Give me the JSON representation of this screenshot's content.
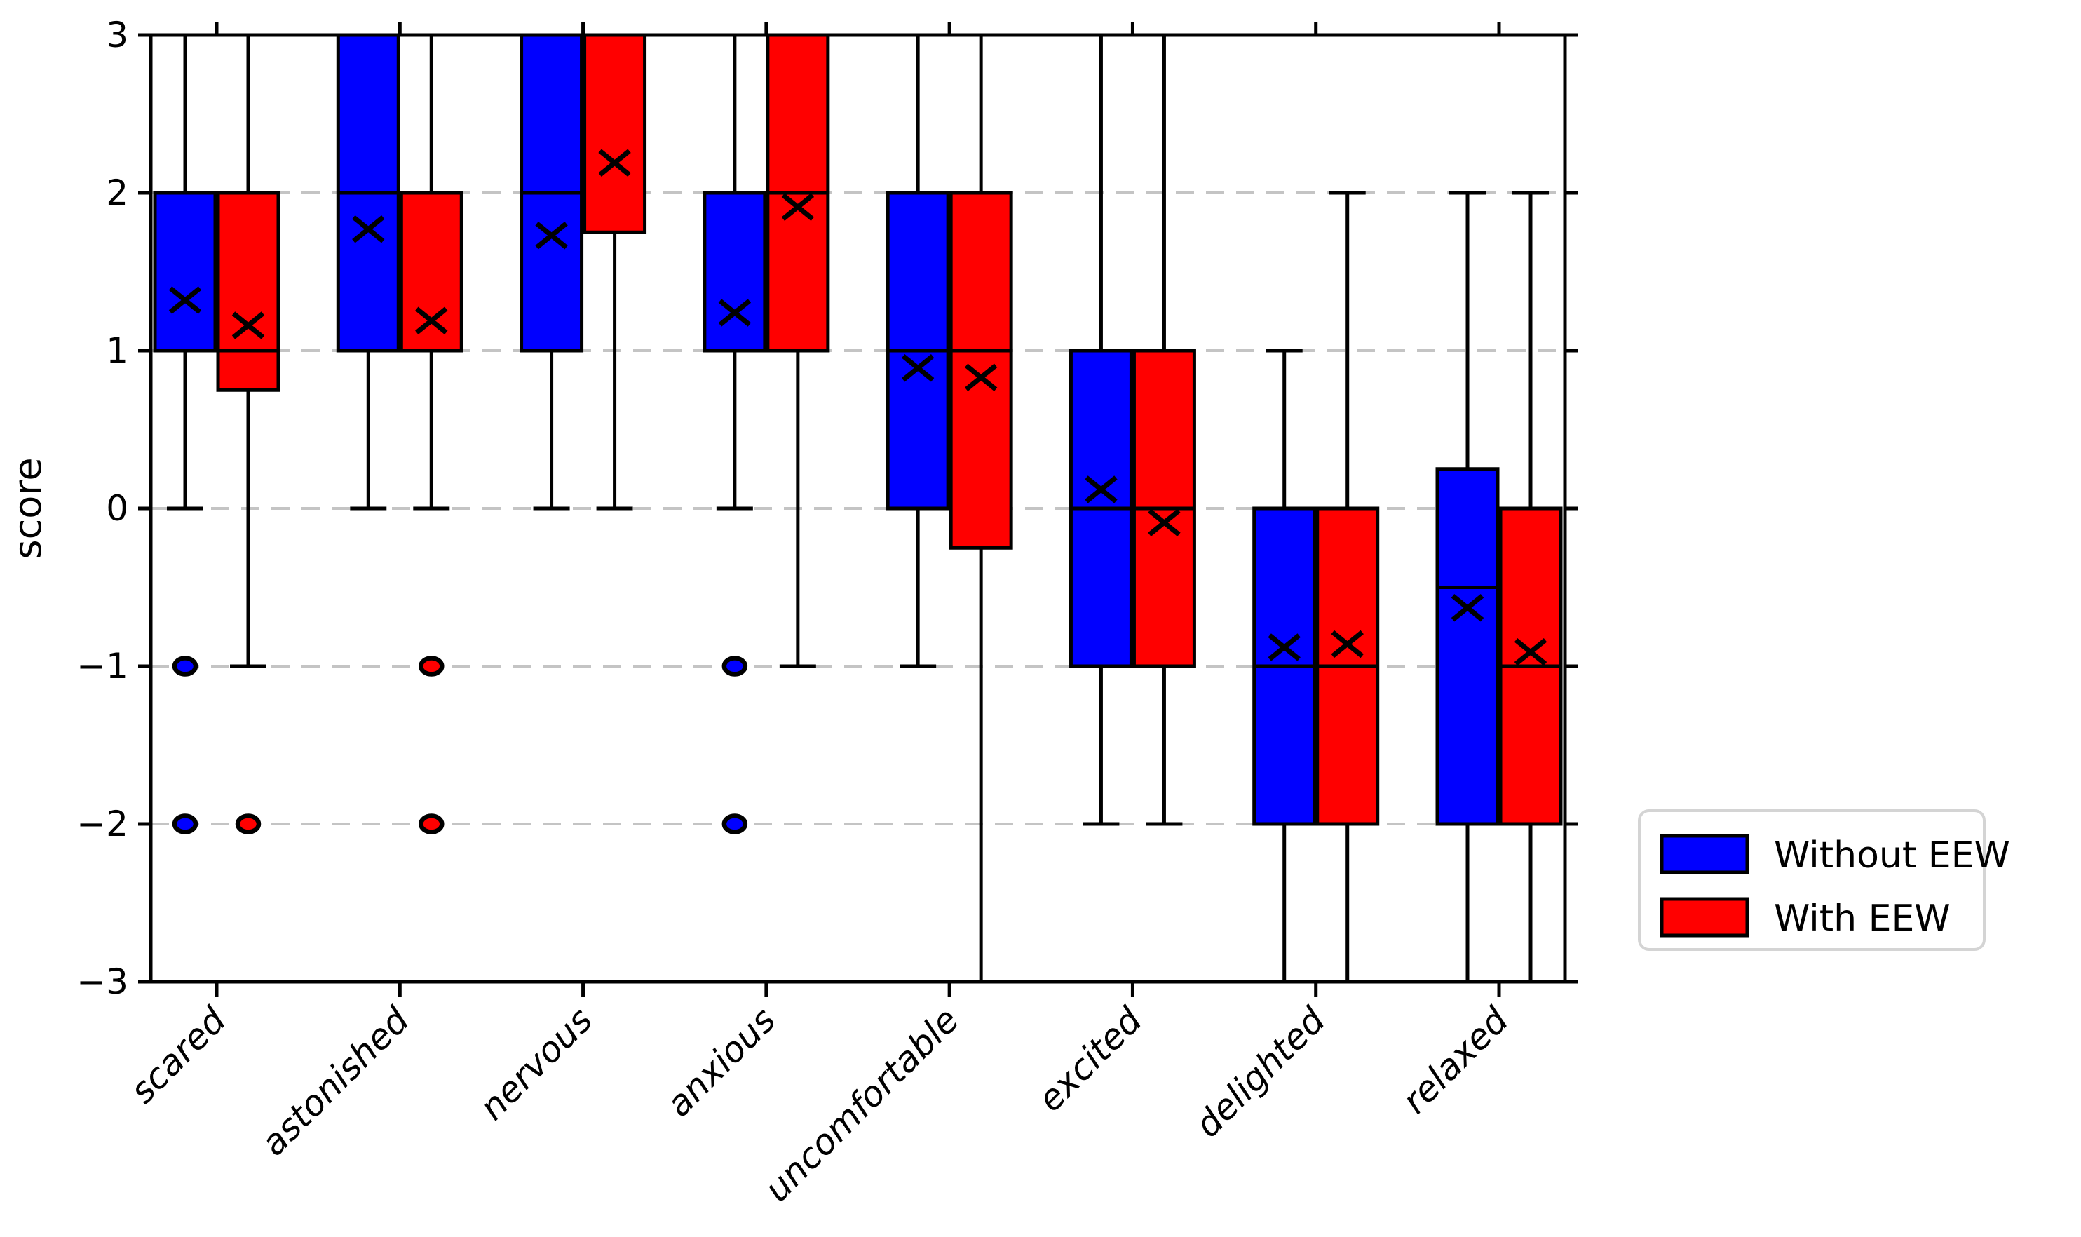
{
  "chart_data": {
    "type": "grouped_boxplot",
    "title": "",
    "xlabel": "",
    "ylabel": "score",
    "ylim": [
      -3,
      3
    ],
    "yticks": [
      3,
      2,
      1,
      0,
      -1,
      -2,
      -3
    ],
    "grid": {
      "show": true,
      "style": "dashed",
      "color": "#c4c4c4",
      "at": [
        2,
        1,
        0,
        -1,
        -2
      ]
    },
    "marker_semantics": {
      "x_marker": "mean",
      "dot_marker": "outlier"
    },
    "legend": {
      "position": "outside-lower-right",
      "entries": [
        {
          "label": "Without EEW",
          "color": "#0000ff"
        },
        {
          "label": "With EEW",
          "color": "#ff0000"
        }
      ]
    },
    "categories": [
      "scared",
      "astonished",
      "nervous",
      "anxious",
      "uncomfortable",
      "excited",
      "delighted",
      "relaxed"
    ],
    "series": [
      {
        "name": "Without EEW",
        "color": "#0000ff",
        "boxes": [
          {
            "category": "scared",
            "whislo": 0,
            "q1": 1,
            "med": 1,
            "q3": 2,
            "whishi": 3,
            "mean": 1.32,
            "fliers": [
              -1,
              -2
            ]
          },
          {
            "category": "astonished",
            "whislo": 0,
            "q1": 1,
            "med": 2,
            "q3": 3,
            "whishi": 3,
            "mean": 1.77,
            "fliers": []
          },
          {
            "category": "nervous",
            "whislo": 0,
            "q1": 1,
            "med": 2,
            "q3": 3,
            "whishi": 3,
            "mean": 1.73,
            "fliers": []
          },
          {
            "category": "anxious",
            "whislo": 0,
            "q1": 1,
            "med": 2,
            "q3": 2,
            "whishi": 3,
            "mean": 1.24,
            "fliers": [
              -1,
              -2
            ]
          },
          {
            "category": "uncomfortable",
            "whislo": -1,
            "q1": 0,
            "med": 1,
            "q3": 2,
            "whishi": 3,
            "mean": 0.89,
            "fliers": []
          },
          {
            "category": "excited",
            "whislo": -2,
            "q1": -1,
            "med": 0,
            "q3": 1,
            "whishi": 3,
            "mean": 0.12,
            "fliers": []
          },
          {
            "category": "delighted",
            "whislo": -3,
            "q1": -2,
            "med": -1,
            "q3": 0,
            "whishi": 1,
            "mean": -0.88,
            "fliers": []
          },
          {
            "category": "relaxed",
            "whislo": -3,
            "q1": -2,
            "med": -0.5,
            "q3": 0.25,
            "whishi": 2,
            "mean": -0.63,
            "fliers": []
          }
        ]
      },
      {
        "name": "With EEW",
        "color": "#ff0000",
        "boxes": [
          {
            "category": "scared",
            "whislo": -1,
            "q1": 0.75,
            "med": 1,
            "q3": 2,
            "whishi": 3,
            "mean": 1.16,
            "fliers": [
              -2
            ]
          },
          {
            "category": "astonished",
            "whislo": 0,
            "q1": 1,
            "med": 1,
            "q3": 2,
            "whishi": 3,
            "mean": 1.19,
            "fliers": [
              -1,
              -2
            ]
          },
          {
            "category": "nervous",
            "whislo": 0,
            "q1": 1.75,
            "med": 3,
            "q3": 3,
            "whishi": 3,
            "mean": 2.19,
            "fliers": []
          },
          {
            "category": "anxious",
            "whislo": -1,
            "q1": 1,
            "med": 2,
            "q3": 3,
            "whishi": 3,
            "mean": 1.91,
            "fliers": []
          },
          {
            "category": "uncomfortable",
            "whislo": -3,
            "q1": -0.25,
            "med": 1,
            "q3": 2,
            "whishi": 3,
            "mean": 0.83,
            "fliers": []
          },
          {
            "category": "excited",
            "whislo": -2,
            "q1": -1,
            "med": 0,
            "q3": 1,
            "whishi": 3,
            "mean": -0.09,
            "fliers": []
          },
          {
            "category": "delighted",
            "whislo": -3,
            "q1": -2,
            "med": -1,
            "q3": 0,
            "whishi": 2,
            "mean": -0.86,
            "fliers": []
          },
          {
            "category": "relaxed",
            "whislo": -3,
            "q1": -2,
            "med": -1,
            "q3": 0,
            "whishi": 2,
            "mean": -0.91,
            "fliers": []
          }
        ]
      }
    ]
  }
}
